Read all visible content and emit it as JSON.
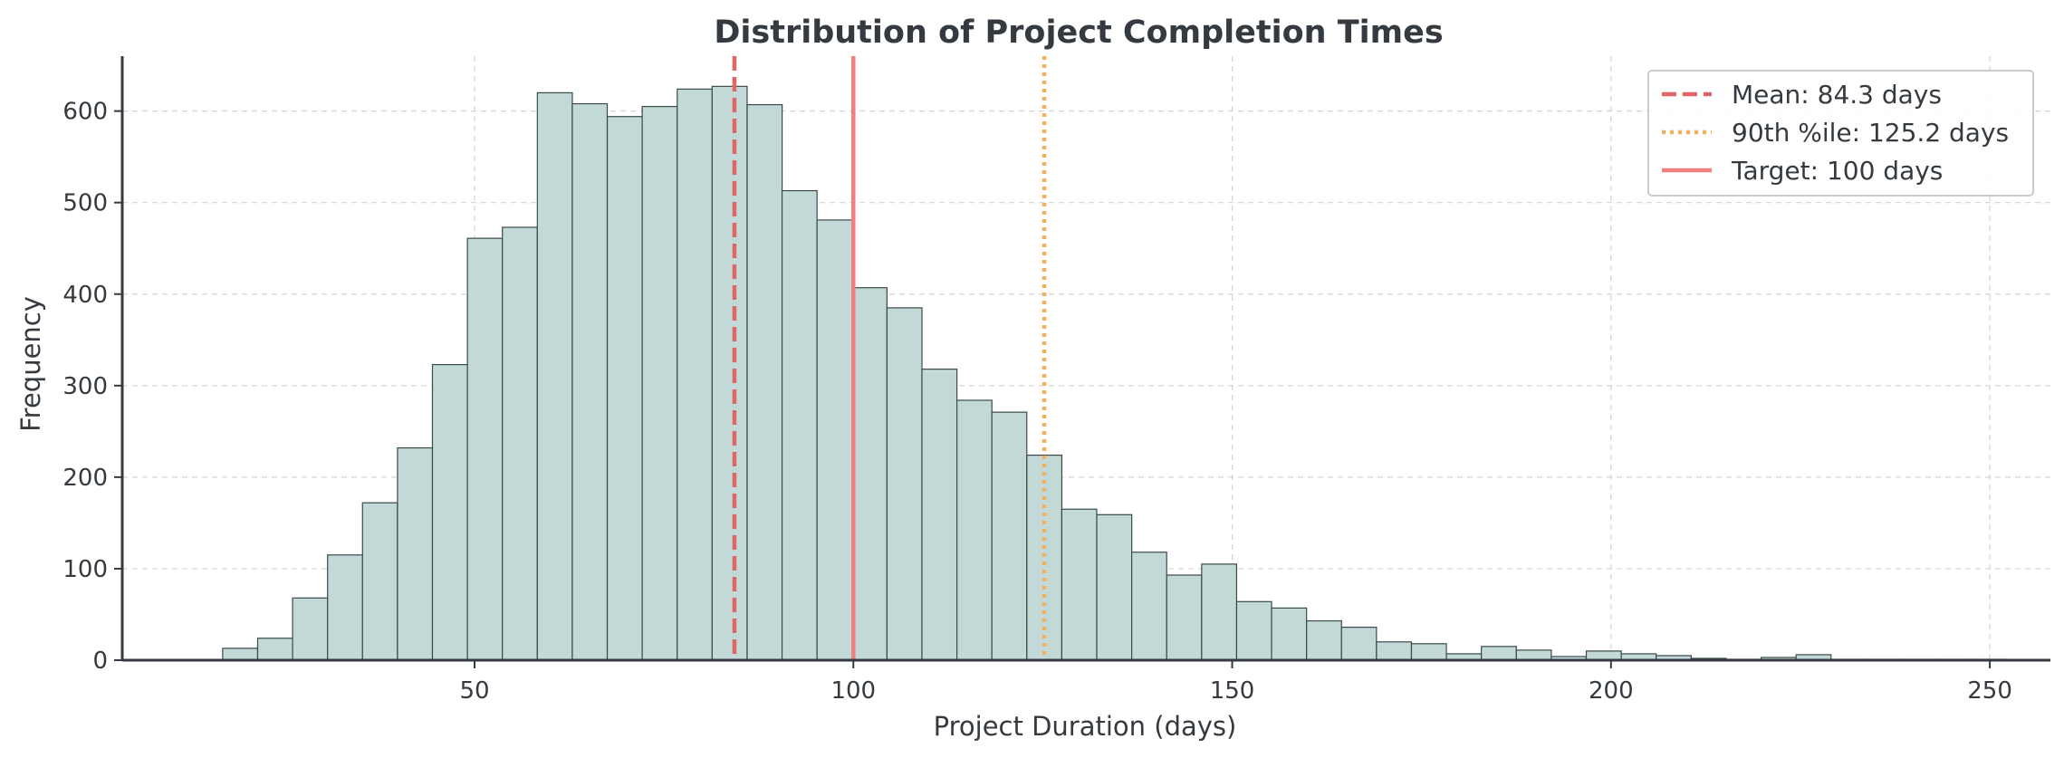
{
  "chart_data": {
    "type": "bar",
    "title": "Distribution of Project Completion Times",
    "xlabel": "Project Duration (days)",
    "ylabel": "Frequency",
    "xlim": [
      3.5,
      258
    ],
    "ylim": [
      0,
      660
    ],
    "x_ticks": [
      50,
      100,
      150,
      200,
      250
    ],
    "y_ticks": [
      0,
      100,
      200,
      300,
      400,
      500,
      600
    ],
    "grid": true,
    "legend_position": "top-right",
    "colors": {
      "bar_fill": "#c2d9d8",
      "bar_edge": "#3a4a48",
      "mean_line": "#e06666",
      "p90_line": "#f4b05a",
      "target_line": "#f08080",
      "text": "#343a40"
    },
    "bin_width": 4.615,
    "bin_starts": [
      16.75,
      21.37,
      25.98,
      30.6,
      35.21,
      39.83,
      44.44,
      49.06,
      53.67,
      58.29,
      62.9,
      67.52,
      72.13,
      76.75,
      81.36,
      85.98,
      90.59,
      95.21,
      99.82,
      104.44,
      109.05,
      113.67,
      118.28,
      122.9,
      127.51,
      132.13,
      136.74,
      141.36,
      145.97,
      150.59,
      155.2,
      159.82,
      164.43,
      169.05,
      173.66,
      178.28,
      182.89,
      187.51,
      192.12,
      196.74,
      201.35,
      205.97,
      210.58,
      215.2,
      219.81,
      224.43,
      229.04,
      233.66,
      238.27,
      242.89,
      247.5
    ],
    "values": [
      13,
      24,
      68,
      115,
      172,
      232,
      323,
      461,
      473,
      620,
      608,
      594,
      605,
      624,
      627,
      607,
      513,
      481,
      407,
      385,
      318,
      284,
      271,
      224,
      165,
      159,
      118,
      93,
      105,
      64,
      57,
      43,
      36,
      20,
      18,
      7,
      15,
      11,
      4,
      10,
      7,
      5,
      2,
      1,
      3,
      6,
      1,
      1,
      1,
      1,
      1
    ],
    "reference_lines": [
      {
        "label": "Mean: 84.3 days",
        "x": 84.3,
        "style": "dashed",
        "color": "#e06666"
      },
      {
        "label": "90th %ile: 125.2 days",
        "x": 125.2,
        "style": "dotted",
        "color": "#f4b05a"
      },
      {
        "label": "Target: 100 days",
        "x": 100,
        "style": "solid",
        "color": "#f08080"
      }
    ]
  }
}
